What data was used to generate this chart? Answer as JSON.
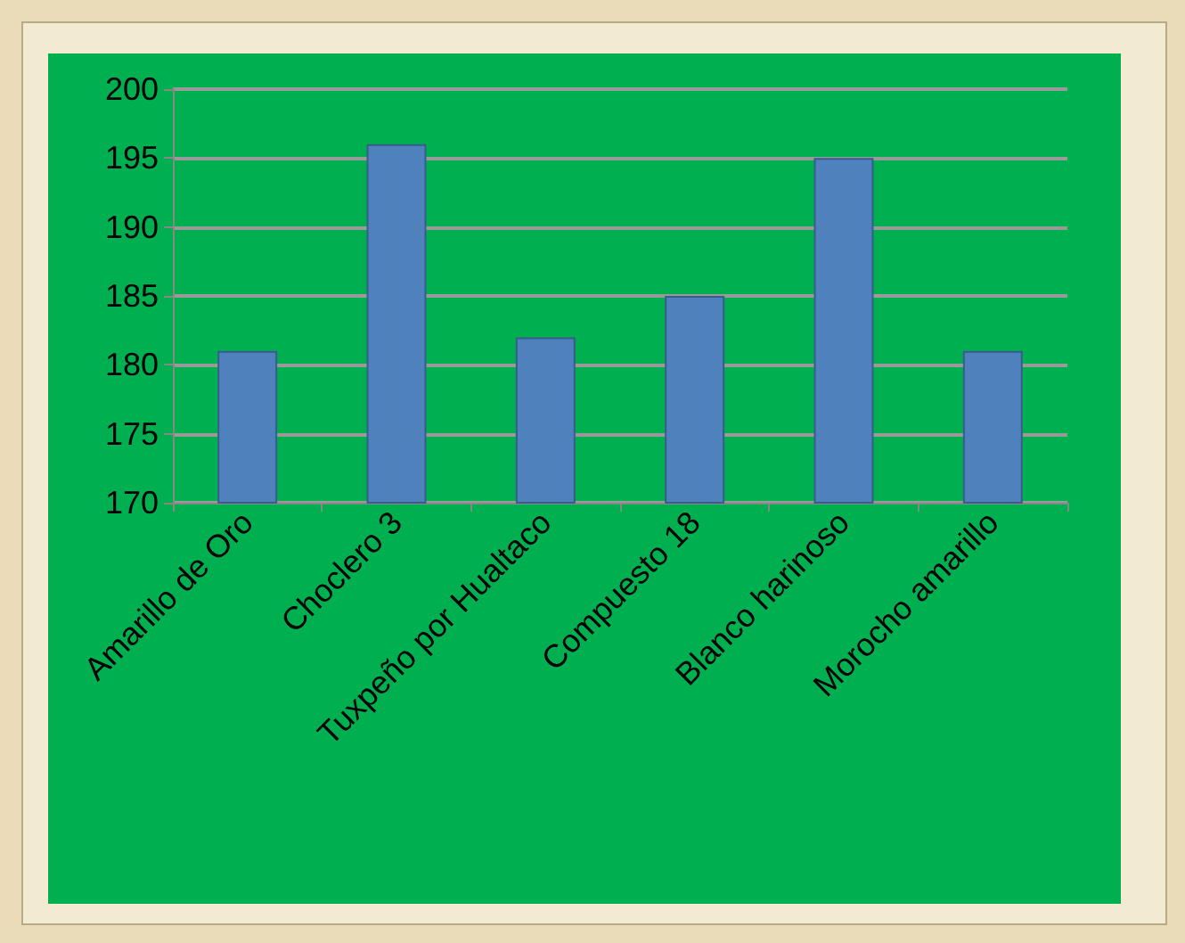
{
  "chart_data": {
    "type": "bar",
    "categories": [
      "Amarillo de Oro",
      "Choclero 3",
      "Tuxpeño por Hualtaco",
      "Compuesto 18",
      "Blanco harinoso",
      "Morocho amarillo"
    ],
    "values": [
      181,
      196,
      182,
      185,
      195,
      181
    ],
    "color": "#4f81bd",
    "ylim": [
      170,
      200
    ],
    "yticks": [
      170,
      175,
      180,
      185,
      190,
      195,
      200
    ],
    "grid": "y"
  }
}
